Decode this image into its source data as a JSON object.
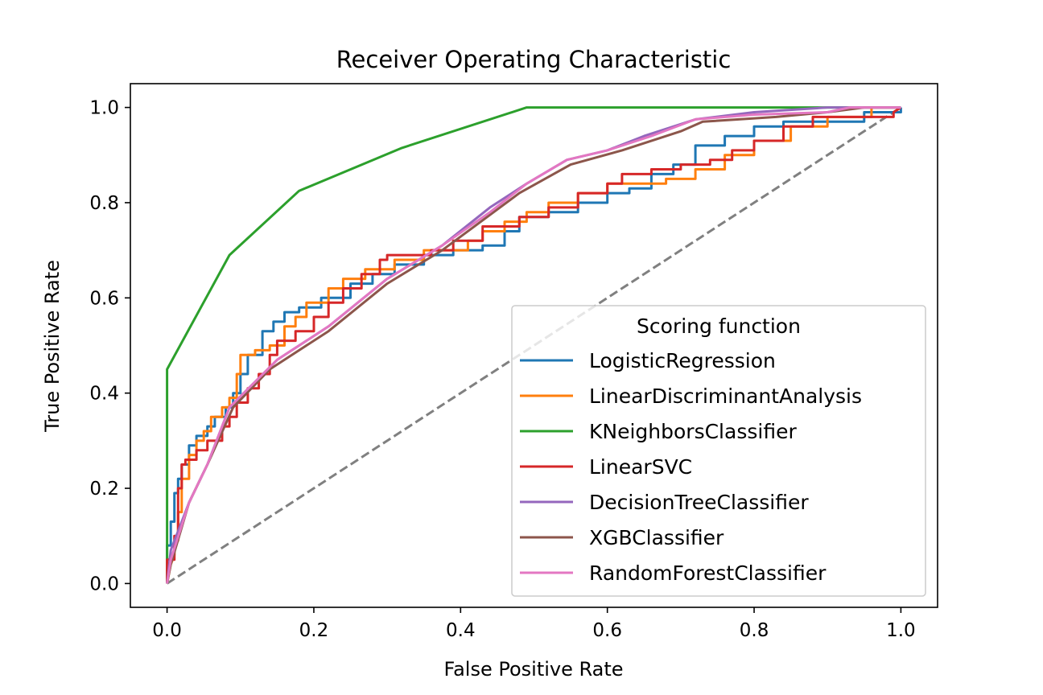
{
  "chart_data": {
    "type": "line",
    "title": "Receiver Operating Characteristic",
    "xlabel": "False Positive Rate",
    "ylabel": "True Positive Rate",
    "xlim": [
      -0.05,
      1.05
    ],
    "ylim": [
      -0.05,
      1.05
    ],
    "xticks": [
      "0.0",
      "0.2",
      "0.4",
      "0.6",
      "0.8",
      "1.0"
    ],
    "yticks": [
      "0.0",
      "0.2",
      "0.4",
      "0.6",
      "0.8",
      "1.0"
    ],
    "grid": false,
    "legend": {
      "title": "Scoring function",
      "placement": "lower-right"
    },
    "reference_line": {
      "x": [
        0,
        1
      ],
      "y": [
        0,
        1
      ],
      "style": "dashed",
      "color": "#808080"
    },
    "series": [
      {
        "name": "LogisticRegression",
        "color": "#1f77b4",
        "points": [
          [
            0,
            0
          ],
          [
            0,
            0.08
          ],
          [
            0.005,
            0.08
          ],
          [
            0.005,
            0.13
          ],
          [
            0.01,
            0.13
          ],
          [
            0.01,
            0.19
          ],
          [
            0.015,
            0.19
          ],
          [
            0.015,
            0.22
          ],
          [
            0.02,
            0.22
          ],
          [
            0.02,
            0.25
          ],
          [
            0.03,
            0.25
          ],
          [
            0.03,
            0.29
          ],
          [
            0.04,
            0.29
          ],
          [
            0.04,
            0.31
          ],
          [
            0.055,
            0.31
          ],
          [
            0.055,
            0.33
          ],
          [
            0.065,
            0.33
          ],
          [
            0.065,
            0.35
          ],
          [
            0.08,
            0.35
          ],
          [
            0.08,
            0.37
          ],
          [
            0.09,
            0.37
          ],
          [
            0.09,
            0.4
          ],
          [
            0.1,
            0.4
          ],
          [
            0.1,
            0.44
          ],
          [
            0.11,
            0.44
          ],
          [
            0.11,
            0.48
          ],
          [
            0.13,
            0.48
          ],
          [
            0.13,
            0.53
          ],
          [
            0.145,
            0.53
          ],
          [
            0.145,
            0.55
          ],
          [
            0.16,
            0.55
          ],
          [
            0.16,
            0.57
          ],
          [
            0.18,
            0.57
          ],
          [
            0.18,
            0.58
          ],
          [
            0.21,
            0.58
          ],
          [
            0.21,
            0.6
          ],
          [
            0.25,
            0.6
          ],
          [
            0.25,
            0.63
          ],
          [
            0.28,
            0.63
          ],
          [
            0.28,
            0.65
          ],
          [
            0.31,
            0.65
          ],
          [
            0.31,
            0.67
          ],
          [
            0.35,
            0.67
          ],
          [
            0.35,
            0.69
          ],
          [
            0.39,
            0.69
          ],
          [
            0.39,
            0.7
          ],
          [
            0.43,
            0.7
          ],
          [
            0.43,
            0.71
          ],
          [
            0.46,
            0.71
          ],
          [
            0.46,
            0.74
          ],
          [
            0.48,
            0.74
          ],
          [
            0.48,
            0.77
          ],
          [
            0.52,
            0.77
          ],
          [
            0.52,
            0.78
          ],
          [
            0.56,
            0.78
          ],
          [
            0.56,
            0.8
          ],
          [
            0.6,
            0.8
          ],
          [
            0.6,
            0.82
          ],
          [
            0.63,
            0.82
          ],
          [
            0.63,
            0.83
          ],
          [
            0.66,
            0.83
          ],
          [
            0.66,
            0.86
          ],
          [
            0.69,
            0.86
          ],
          [
            0.69,
            0.88
          ],
          [
            0.72,
            0.88
          ],
          [
            0.72,
            0.92
          ],
          [
            0.76,
            0.92
          ],
          [
            0.76,
            0.94
          ],
          [
            0.8,
            0.94
          ],
          [
            0.8,
            0.96
          ],
          [
            0.84,
            0.96
          ],
          [
            0.84,
            0.97
          ],
          [
            0.95,
            0.97
          ],
          [
            0.95,
            0.99
          ],
          [
            1.0,
            0.99
          ],
          [
            1.0,
            1.0
          ]
        ]
      },
      {
        "name": "LinearDiscriminantAnalysis",
        "color": "#ff7f0e",
        "points": [
          [
            0,
            0
          ],
          [
            0.005,
            0.04
          ],
          [
            0.01,
            0.06
          ],
          [
            0.01,
            0.09
          ],
          [
            0.015,
            0.09
          ],
          [
            0.015,
            0.15
          ],
          [
            0.02,
            0.15
          ],
          [
            0.02,
            0.22
          ],
          [
            0.03,
            0.22
          ],
          [
            0.03,
            0.27
          ],
          [
            0.04,
            0.27
          ],
          [
            0.04,
            0.3
          ],
          [
            0.05,
            0.3
          ],
          [
            0.05,
            0.32
          ],
          [
            0.06,
            0.32
          ],
          [
            0.06,
            0.35
          ],
          [
            0.075,
            0.35
          ],
          [
            0.075,
            0.37
          ],
          [
            0.085,
            0.37
          ],
          [
            0.085,
            0.39
          ],
          [
            0.095,
            0.39
          ],
          [
            0.095,
            0.44
          ],
          [
            0.1,
            0.44
          ],
          [
            0.1,
            0.48
          ],
          [
            0.12,
            0.48
          ],
          [
            0.12,
            0.49
          ],
          [
            0.14,
            0.49
          ],
          [
            0.14,
            0.5
          ],
          [
            0.16,
            0.5
          ],
          [
            0.16,
            0.54
          ],
          [
            0.175,
            0.54
          ],
          [
            0.175,
            0.56
          ],
          [
            0.19,
            0.56
          ],
          [
            0.19,
            0.59
          ],
          [
            0.22,
            0.59
          ],
          [
            0.22,
            0.62
          ],
          [
            0.24,
            0.62
          ],
          [
            0.24,
            0.64
          ],
          [
            0.27,
            0.64
          ],
          [
            0.27,
            0.66
          ],
          [
            0.31,
            0.66
          ],
          [
            0.31,
            0.68
          ],
          [
            0.35,
            0.68
          ],
          [
            0.35,
            0.7
          ],
          [
            0.41,
            0.7
          ],
          [
            0.41,
            0.72
          ],
          [
            0.43,
            0.72
          ],
          [
            0.43,
            0.74
          ],
          [
            0.46,
            0.74
          ],
          [
            0.46,
            0.76
          ],
          [
            0.49,
            0.76
          ],
          [
            0.49,
            0.78
          ],
          [
            0.52,
            0.78
          ],
          [
            0.52,
            0.8
          ],
          [
            0.56,
            0.8
          ],
          [
            0.56,
            0.82
          ],
          [
            0.6,
            0.82
          ],
          [
            0.6,
            0.84
          ],
          [
            0.68,
            0.84
          ],
          [
            0.68,
            0.85
          ],
          [
            0.72,
            0.85
          ],
          [
            0.72,
            0.87
          ],
          [
            0.76,
            0.87
          ],
          [
            0.76,
            0.9
          ],
          [
            0.8,
            0.9
          ],
          [
            0.8,
            0.93
          ],
          [
            0.85,
            0.93
          ],
          [
            0.85,
            0.96
          ],
          [
            0.9,
            0.96
          ],
          [
            0.9,
            0.98
          ],
          [
            0.96,
            0.98
          ],
          [
            0.96,
            1.0
          ],
          [
            1.0,
            1.0
          ]
        ]
      },
      {
        "name": "KNeighborsClassifier",
        "color": "#2ca02c",
        "points": [
          [
            0,
            0
          ],
          [
            0,
            0.45
          ],
          [
            0.085,
            0.69
          ],
          [
            0.18,
            0.825
          ],
          [
            0.32,
            0.915
          ],
          [
            0.49,
            1.0
          ],
          [
            1.0,
            1.0
          ]
        ]
      },
      {
        "name": "LinearSVC",
        "color": "#d62728",
        "points": [
          [
            0,
            0
          ],
          [
            0,
            0.05
          ],
          [
            0.01,
            0.05
          ],
          [
            0.01,
            0.1
          ],
          [
            0.015,
            0.1
          ],
          [
            0.015,
            0.2
          ],
          [
            0.02,
            0.2
          ],
          [
            0.02,
            0.25
          ],
          [
            0.025,
            0.25
          ],
          [
            0.025,
            0.26
          ],
          [
            0.04,
            0.26
          ],
          [
            0.04,
            0.28
          ],
          [
            0.055,
            0.28
          ],
          [
            0.055,
            0.3
          ],
          [
            0.075,
            0.3
          ],
          [
            0.075,
            0.33
          ],
          [
            0.085,
            0.33
          ],
          [
            0.085,
            0.35
          ],
          [
            0.095,
            0.35
          ],
          [
            0.095,
            0.38
          ],
          [
            0.11,
            0.38
          ],
          [
            0.11,
            0.41
          ],
          [
            0.125,
            0.41
          ],
          [
            0.125,
            0.44
          ],
          [
            0.14,
            0.44
          ],
          [
            0.14,
            0.48
          ],
          [
            0.15,
            0.48
          ],
          [
            0.15,
            0.51
          ],
          [
            0.175,
            0.51
          ],
          [
            0.175,
            0.53
          ],
          [
            0.2,
            0.53
          ],
          [
            0.2,
            0.56
          ],
          [
            0.22,
            0.56
          ],
          [
            0.22,
            0.59
          ],
          [
            0.24,
            0.59
          ],
          [
            0.24,
            0.62
          ],
          [
            0.265,
            0.62
          ],
          [
            0.265,
            0.65
          ],
          [
            0.29,
            0.65
          ],
          [
            0.29,
            0.68
          ],
          [
            0.3,
            0.68
          ],
          [
            0.3,
            0.69
          ],
          [
            0.36,
            0.69
          ],
          [
            0.36,
            0.7
          ],
          [
            0.39,
            0.7
          ],
          [
            0.39,
            0.72
          ],
          [
            0.43,
            0.72
          ],
          [
            0.43,
            0.75
          ],
          [
            0.48,
            0.75
          ],
          [
            0.48,
            0.77
          ],
          [
            0.52,
            0.77
          ],
          [
            0.52,
            0.79
          ],
          [
            0.56,
            0.79
          ],
          [
            0.56,
            0.82
          ],
          [
            0.6,
            0.82
          ],
          [
            0.6,
            0.84
          ],
          [
            0.62,
            0.84
          ],
          [
            0.62,
            0.86
          ],
          [
            0.66,
            0.86
          ],
          [
            0.66,
            0.87
          ],
          [
            0.7,
            0.87
          ],
          [
            0.7,
            0.88
          ],
          [
            0.74,
            0.88
          ],
          [
            0.74,
            0.89
          ],
          [
            0.77,
            0.89
          ],
          [
            0.77,
            0.91
          ],
          [
            0.8,
            0.91
          ],
          [
            0.8,
            0.93
          ],
          [
            0.84,
            0.93
          ],
          [
            0.84,
            0.96
          ],
          [
            0.88,
            0.96
          ],
          [
            0.88,
            0.98
          ],
          [
            0.99,
            0.98
          ],
          [
            0.99,
            0.99
          ],
          [
            1.0,
            1.0
          ]
        ]
      },
      {
        "name": "DecisionTreeClassifier",
        "color": "#9467bd",
        "points": [
          [
            0,
            0
          ],
          [
            0.005,
            0.07
          ],
          [
            0.03,
            0.17
          ],
          [
            0.055,
            0.25
          ],
          [
            0.085,
            0.37
          ],
          [
            0.15,
            0.47
          ],
          [
            0.22,
            0.54
          ],
          [
            0.3,
            0.64
          ],
          [
            0.375,
            0.71
          ],
          [
            0.44,
            0.79
          ],
          [
            0.49,
            0.84
          ],
          [
            0.545,
            0.89
          ],
          [
            0.6,
            0.91
          ],
          [
            0.65,
            0.94
          ],
          [
            0.72,
            0.975
          ],
          [
            0.8,
            0.99
          ],
          [
            0.9,
            1.0
          ],
          [
            1.0,
            1.0
          ]
        ]
      },
      {
        "name": "XGBClassifier",
        "color": "#8c564b",
        "points": [
          [
            0,
            0
          ],
          [
            0.005,
            0.04
          ],
          [
            0.03,
            0.17
          ],
          [
            0.055,
            0.25
          ],
          [
            0.09,
            0.37
          ],
          [
            0.14,
            0.45
          ],
          [
            0.22,
            0.53
          ],
          [
            0.3,
            0.63
          ],
          [
            0.375,
            0.7
          ],
          [
            0.48,
            0.82
          ],
          [
            0.55,
            0.88
          ],
          [
            0.62,
            0.91
          ],
          [
            0.7,
            0.95
          ],
          [
            0.73,
            0.97
          ],
          [
            0.83,
            0.98
          ],
          [
            0.9,
            0.99
          ],
          [
            0.95,
            1.0
          ],
          [
            1.0,
            1.0
          ]
        ]
      },
      {
        "name": "RandomForestClassifier",
        "color": "#e377c2",
        "points": [
          [
            0,
            0
          ],
          [
            0.005,
            0.05
          ],
          [
            0.03,
            0.17
          ],
          [
            0.055,
            0.25
          ],
          [
            0.085,
            0.37
          ],
          [
            0.15,
            0.47
          ],
          [
            0.22,
            0.54
          ],
          [
            0.3,
            0.64
          ],
          [
            0.375,
            0.71
          ],
          [
            0.44,
            0.78
          ],
          [
            0.49,
            0.84
          ],
          [
            0.545,
            0.89
          ],
          [
            0.6,
            0.91
          ],
          [
            0.66,
            0.94
          ],
          [
            0.72,
            0.975
          ],
          [
            0.8,
            0.985
          ],
          [
            0.9,
            0.99
          ],
          [
            0.93,
            1.0
          ],
          [
            1.0,
            1.0
          ]
        ]
      }
    ]
  }
}
